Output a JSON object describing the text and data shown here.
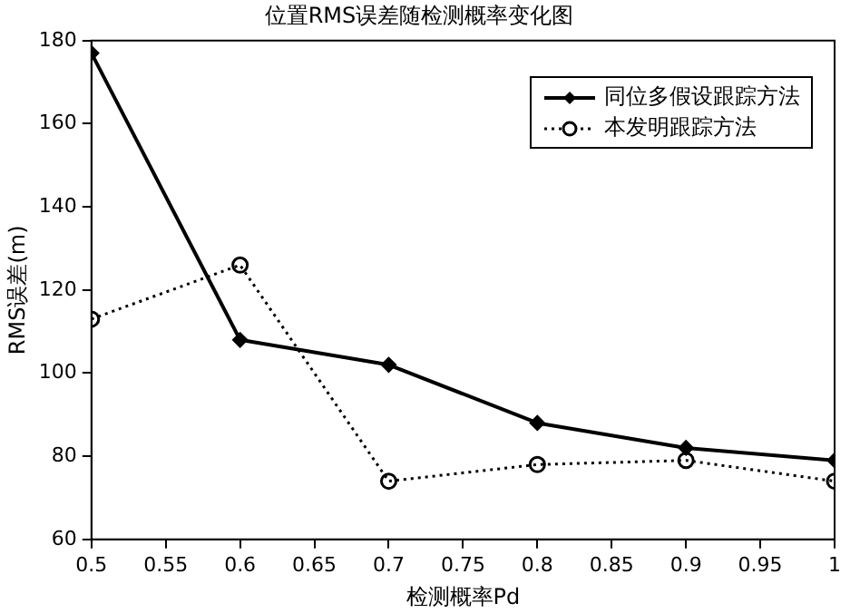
{
  "chart_data": {
    "type": "line",
    "title": "位置RMS误差随检测概率变化图",
    "xlabel": "检测概率Pd",
    "ylabel": "RMS误差(m)",
    "x": [
      0.5,
      0.6,
      0.7,
      0.8,
      0.9,
      1
    ],
    "series": [
      {
        "name": "同位多假设跟踪方法",
        "color": "#000000",
        "values": [
          177,
          108,
          102,
          88,
          82,
          79
        ],
        "marker": "diamond",
        "line_style": "solid"
      },
      {
        "name": "本发明跟踪方法",
        "color": "#000000",
        "values": [
          113,
          126,
          74,
          78,
          79,
          74
        ],
        "marker": "circle",
        "line_style": "dotted"
      }
    ],
    "xlim": [
      0.5,
      1
    ],
    "xticks": [
      0.5,
      0.55,
      0.6,
      0.65,
      0.7,
      0.75,
      0.8,
      0.85,
      0.9,
      0.95,
      1
    ],
    "ylim": [
      60,
      180
    ],
    "yticks": [
      60,
      80,
      100,
      120,
      140,
      160,
      180
    ],
    "grid": false,
    "legend": "top right"
  }
}
